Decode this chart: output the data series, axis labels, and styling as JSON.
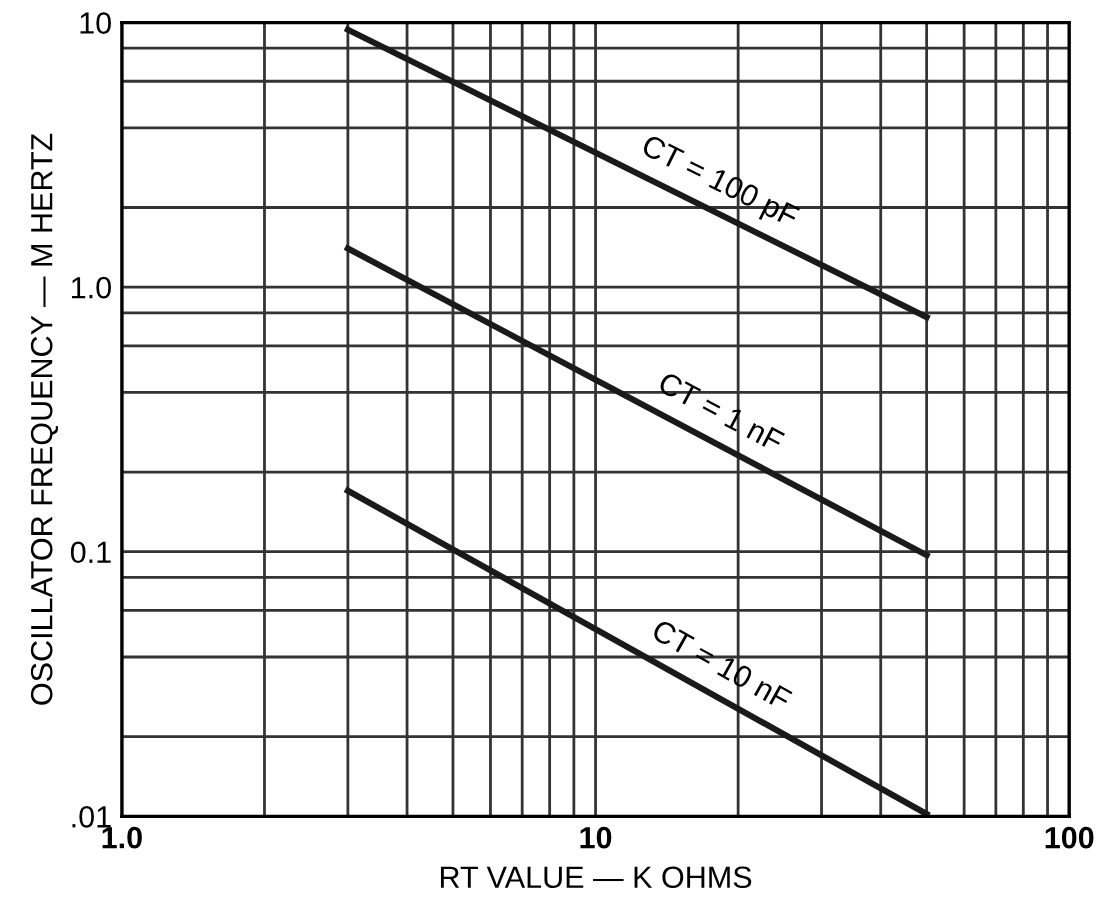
{
  "chart_data": {
    "type": "line",
    "xlabel": "RT VALUE — K OHMS",
    "ylabel": "OSCILLATOR FREQUENCY — M HERTZ",
    "log": "xy",
    "grid": true,
    "marker": "none",
    "line_style": "solid",
    "x": [
      3,
      50
    ],
    "xlim": [
      1,
      100
    ],
    "ylim": [
      0.01,
      10
    ],
    "xticks": [
      {
        "value": 1,
        "label": "1.0"
      },
      {
        "value": 2,
        "label": null
      },
      {
        "value": 3,
        "label": null
      },
      {
        "value": 4,
        "label": null
      },
      {
        "value": 5,
        "label": null
      },
      {
        "value": 6,
        "label": null
      },
      {
        "value": 7,
        "label": null
      },
      {
        "value": 8,
        "label": null
      },
      {
        "value": 9,
        "label": null
      },
      10,
      {
        "value": 20,
        "label": null
      },
      {
        "value": 30,
        "label": null
      },
      {
        "value": 40,
        "label": null
      },
      {
        "value": 50,
        "label": null
      },
      {
        "value": 60,
        "label": null
      },
      {
        "value": 70,
        "label": null
      },
      {
        "value": 80,
        "label": null
      },
      {
        "value": 90,
        "label": null
      },
      100
    ],
    "yticks": [
      {
        "value": 0.01,
        "label": ".01"
      },
      {
        "value": 0.02,
        "label": null
      },
      {
        "value": 0.04,
        "label": null
      },
      {
        "value": 0.06,
        "label": null
      },
      {
        "value": 0.08,
        "label": null
      },
      0.1,
      {
        "value": 0.2,
        "label": null
      },
      {
        "value": 0.4,
        "label": null
      },
      {
        "value": 0.6,
        "label": null
      },
      {
        "value": 0.8,
        "label": null
      },
      {
        "value": 1,
        "label": "1.0"
      },
      {
        "value": 2,
        "label": null
      },
      {
        "value": 4,
        "label": null
      },
      {
        "value": 6,
        "label": null
      },
      {
        "value": 8,
        "label": null
      },
      10
    ],
    "series": [
      {
        "color": "#1a1a1a",
        "values": [
          9.4,
          0.77
        ]
      },
      {
        "color": "#1a1a1a",
        "values": [
          1.4,
          0.097
        ]
      },
      {
        "color": "#1a1a1a",
        "values": [
          0.17,
          0.0102
        ]
      }
    ],
    "annotations": [
      "CT = 100 pF",
      "CT = 1 nF",
      "CT = 10 nF"
    ]
  }
}
